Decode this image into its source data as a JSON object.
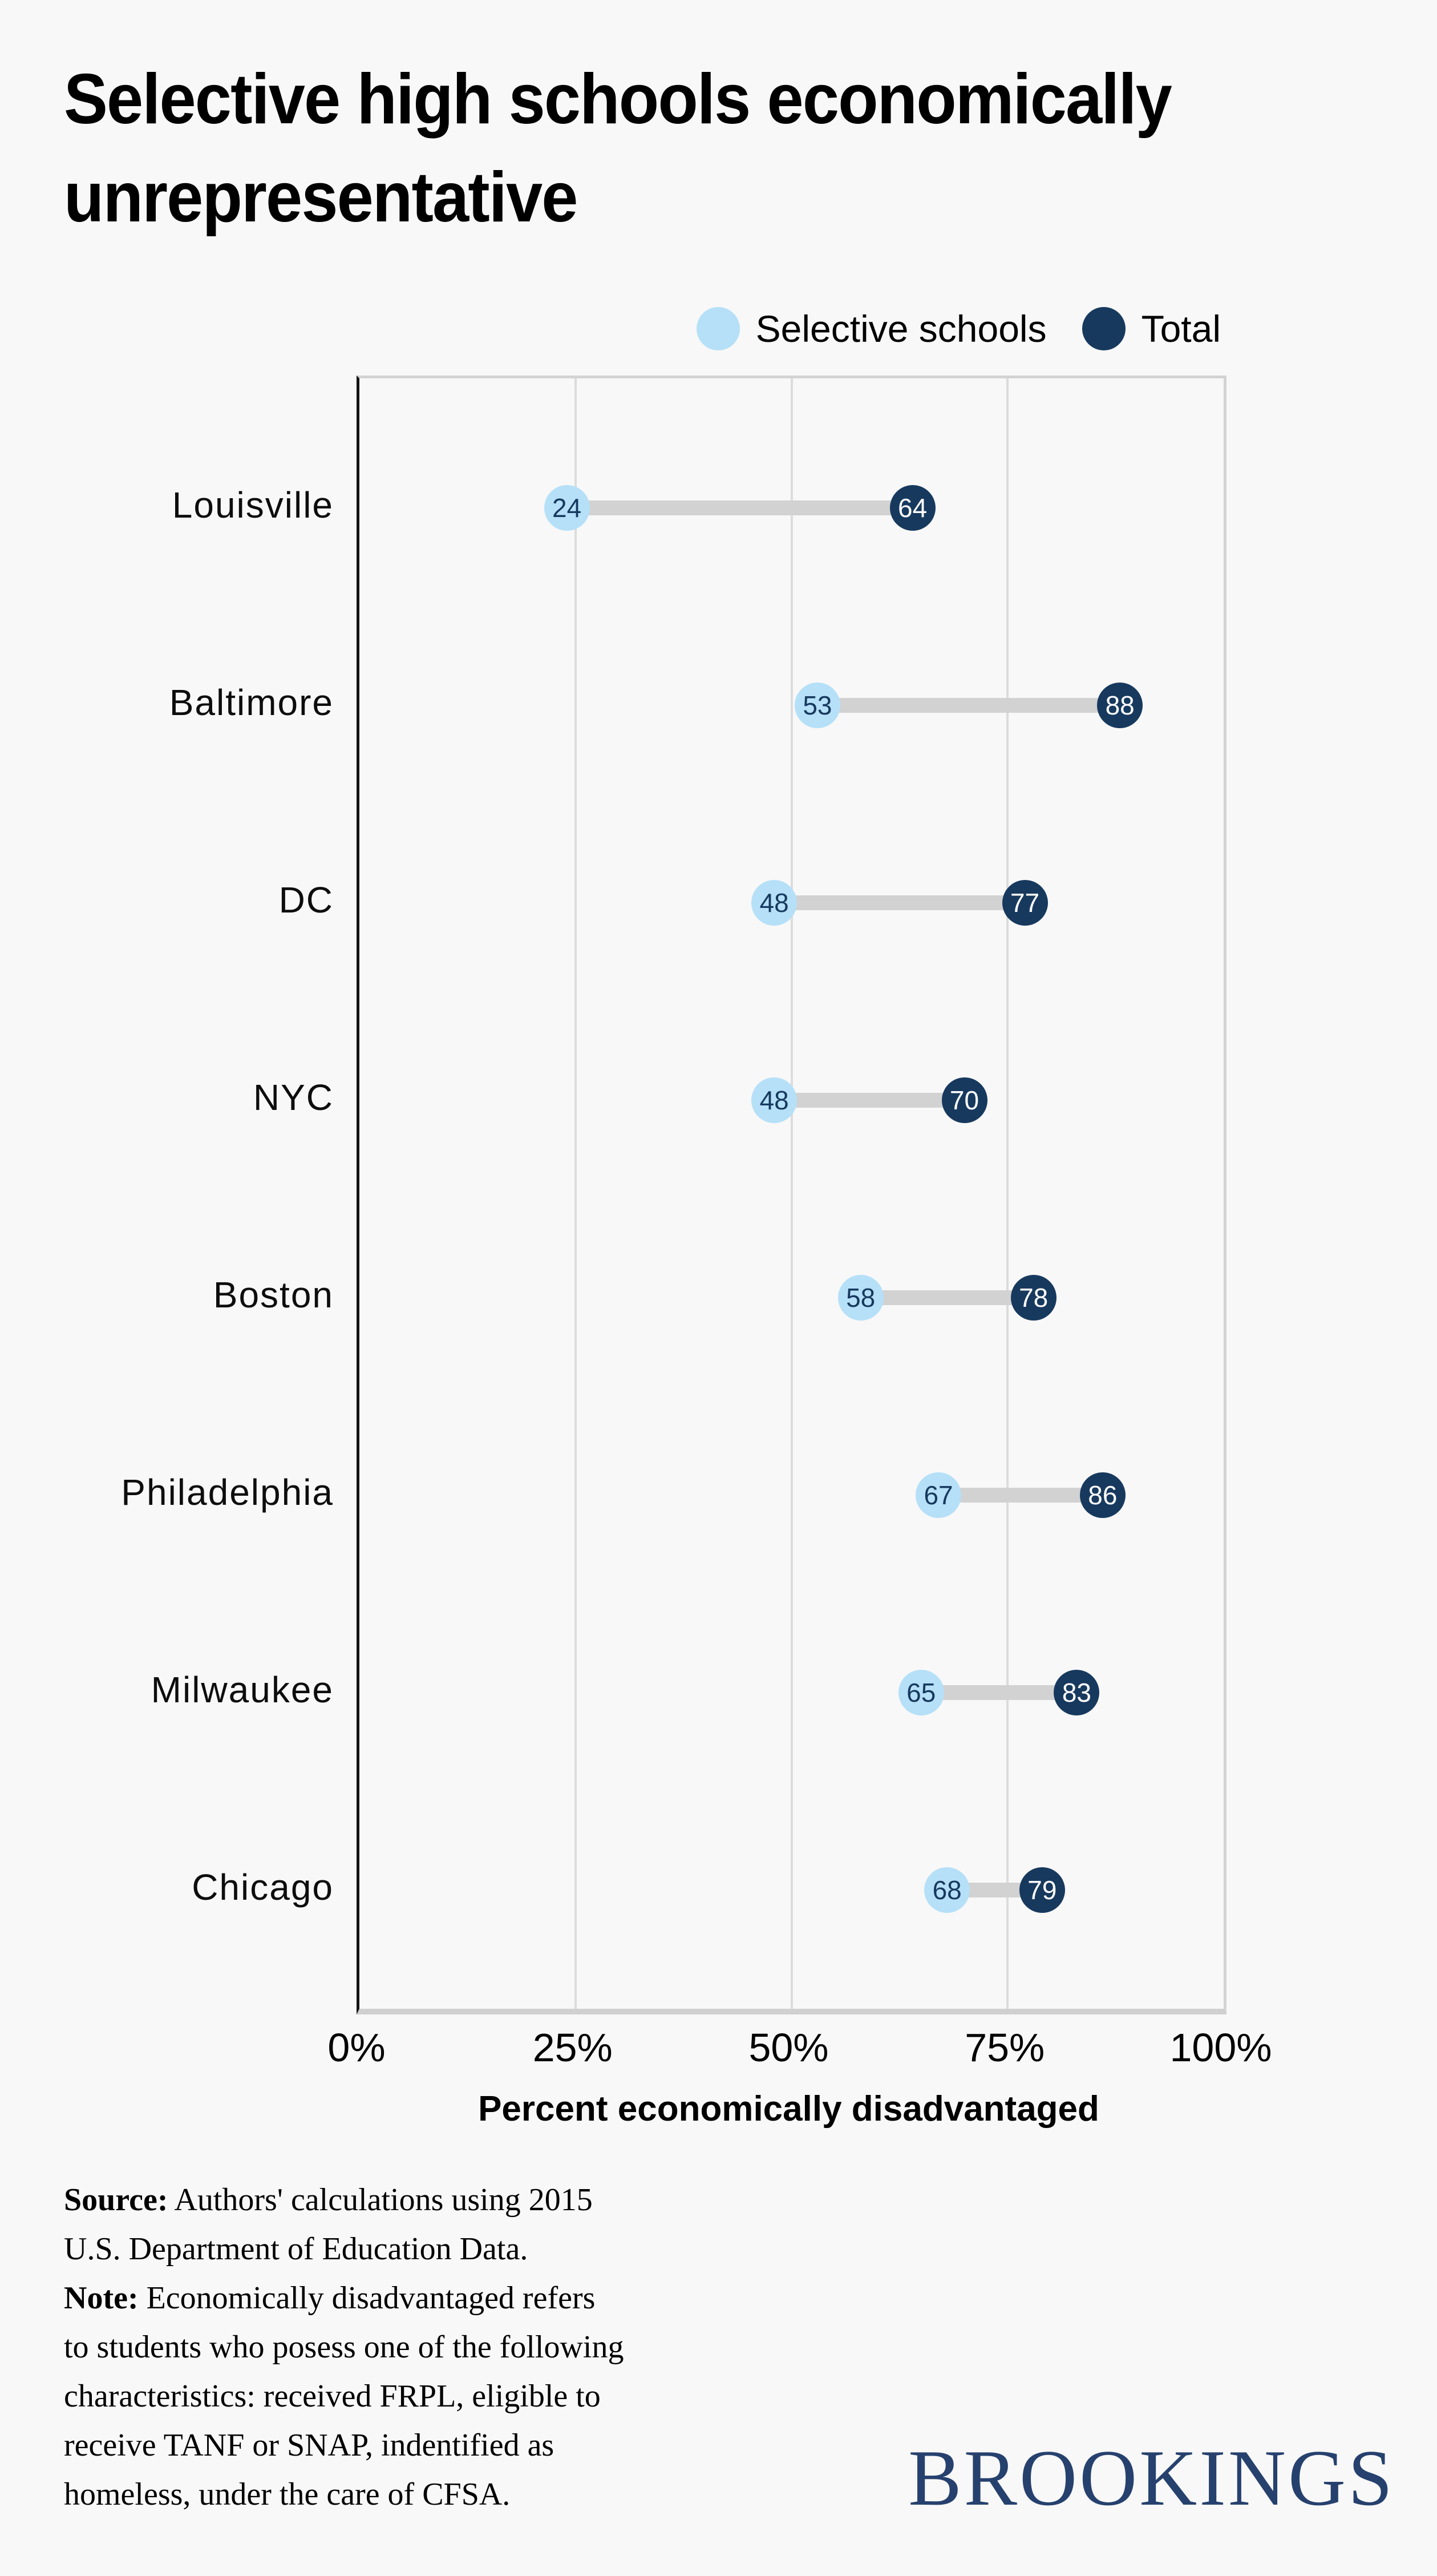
{
  "page": {
    "background": "#f8f8f8"
  },
  "title": "Selective high schools economically\nunrepresentative",
  "legend": {
    "items": [
      {
        "label": "Selective schools",
        "color": "#b5e0f8"
      },
      {
        "label": "Total",
        "color": "#17395e"
      }
    ]
  },
  "chart_data": {
    "type": "scatter",
    "variant": "dumbbell",
    "title": "Selective high schools economically unrepresentative",
    "categories": [
      "Louisville",
      "Baltimore",
      "DC",
      "NYC",
      "Boston",
      "Philadelphia",
      "Milwaukee",
      "Chicago"
    ],
    "series": [
      {
        "name": "Selective schools",
        "color": "#b5e0f8",
        "label_color": "#17395e",
        "values": [
          24,
          53,
          48,
          48,
          58,
          67,
          65,
          68
        ]
      },
      {
        "name": "Total",
        "color": "#17395e",
        "label_color": "#ffffff",
        "values": [
          64,
          88,
          77,
          70,
          78,
          86,
          83,
          79
        ]
      }
    ],
    "xlabel": "Percent economically disadvantaged",
    "ylabel": "",
    "xlim": [
      0,
      100
    ],
    "x_ticks": [
      {
        "value": 0,
        "label": "0%"
      },
      {
        "value": 25,
        "label": "25%"
      },
      {
        "value": 50,
        "label": "50%"
      },
      {
        "value": 75,
        "label": "75%"
      },
      {
        "value": 100,
        "label": "100%"
      }
    ],
    "grid": "vertical",
    "legend_position": "top-right",
    "connector_color": "#d2d2d2"
  },
  "notes": [
    {
      "label": "Source:",
      "lines": [
        "Authors' calculations using 2015",
        "U.S. Department of Education Data."
      ]
    },
    {
      "label": "Note:",
      "lines": [
        "Economically disadvantaged refers",
        "to students who posess one of the following",
        "characteristics: received FRPL, eligible to",
        "receive TANF or SNAP, indentified as",
        "homeless, under the care of CFSA."
      ]
    }
  ],
  "logo": "BROOKINGS"
}
